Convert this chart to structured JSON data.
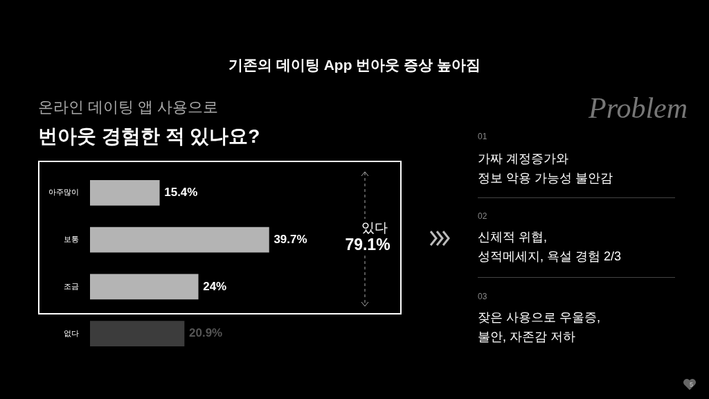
{
  "chart_data": {
    "type": "bar",
    "orientation": "horizontal",
    "title": "기존의 데이팅 App 번아웃 증상 높아짐",
    "subtitle": "온라인 데이팅 앱 사용으로\n번아웃 경험한 적 있나요?",
    "categories": [
      "아주많이",
      "보통",
      "조금",
      "없다"
    ],
    "values": [
      15.4,
      39.7,
      24,
      20.9
    ],
    "colors": [
      "#b4b4b4",
      "#b4b4b4",
      "#b4b4b4",
      "#3c3c3c"
    ],
    "value_labels": [
      "15.4%",
      "39.7%",
      "24%",
      "20.9%"
    ],
    "legend": false,
    "annotations": [
      "있다",
      "79.1%",
      "01",
      "가짜 계정증가와\n정보 악용 가능성 불안감",
      "02",
      "신체적 위협,\n성적메세지, 욕설 경험 2/3",
      "03",
      "잦은 사용으로 우울증,\n불안, 자존감 저하",
      "Problem",
      "5"
    ]
  }
}
